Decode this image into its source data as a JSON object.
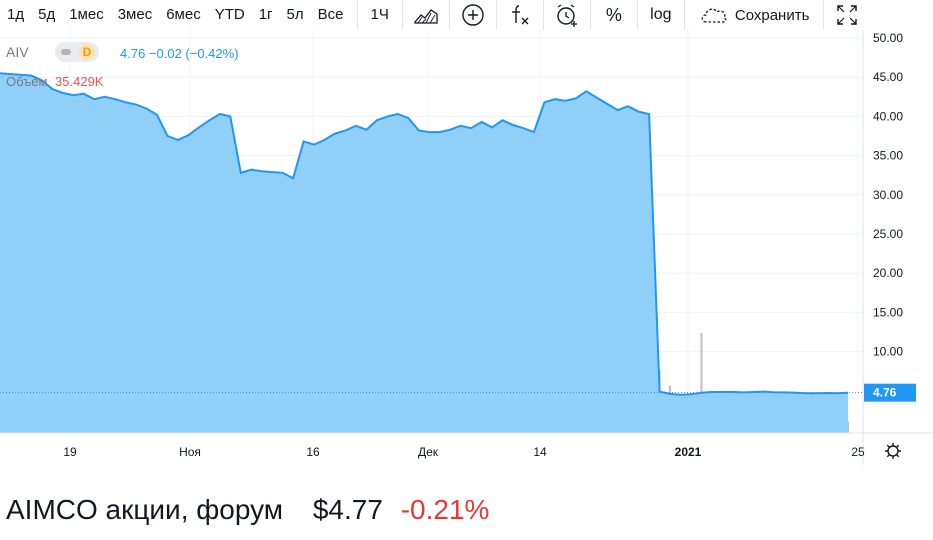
{
  "toolbar": {
    "timeframes": [
      "1д",
      "5д",
      "1мес",
      "3мес",
      "6мес",
      "YTD",
      "1г",
      "5л",
      "Все"
    ],
    "interval": "1Ч",
    "save_label": "Сохранить",
    "percent_label": "%",
    "log_label": "log"
  },
  "legend": {
    "symbol": "AIV",
    "badge": "D",
    "quote": "4.76 −0.02 (−0.42%)",
    "volume_label": "Объём",
    "volume_value": "35.429K"
  },
  "price_axis": {
    "labels": [
      "50.00",
      "45.00",
      "40.00",
      "35.00",
      "30.00",
      "25.00",
      "20.00",
      "15.00",
      "10.00",
      "4.76"
    ],
    "current_price_label": "4.76"
  },
  "time_axis": {
    "labels": [
      "19",
      "Ноя",
      "16",
      "Дек",
      "14",
      "2021",
      "25"
    ]
  },
  "footer": {
    "name": "AIMCO акции, форум",
    "price": "$4.77",
    "change": "-0.21%"
  },
  "colors": {
    "area_fill": "#90d0f8",
    "line": "#2196f3",
    "negative": "#e53935",
    "volume": "#b7a3b0"
  },
  "chart_data": {
    "type": "area",
    "ylim": [
      0,
      50
    ],
    "ticks": [
      "19",
      "Ноя",
      "16",
      "Дек",
      "14",
      "2021",
      "25"
    ],
    "series": [
      {
        "values": [
          45.5,
          45.4,
          45.3,
          45.2,
          44.6,
          43.5,
          43.0,
          42.7,
          42.9,
          42.2,
          42.5,
          42.2,
          41.8,
          41.5,
          41.0,
          40.2,
          37.5,
          37.0,
          37.6,
          38.6,
          39.5,
          40.3,
          40.0,
          32.8,
          33.2,
          33.0,
          32.9,
          32.8,
          32.1,
          36.8,
          36.4,
          37.0,
          37.8,
          38.2,
          38.8,
          38.3,
          39.5,
          40.0,
          40.3,
          39.8,
          38.2,
          38.0,
          38.0,
          38.3,
          38.8,
          38.5,
          39.3,
          38.6,
          39.5,
          38.9,
          38.5,
          38.0,
          41.8,
          42.2,
          42.0,
          42.3,
          43.2,
          42.4,
          41.6,
          40.8,
          41.3,
          40.6,
          40.3,
          4.9,
          4.6,
          4.5,
          4.55,
          4.75,
          4.85,
          4.85,
          4.85,
          4.8,
          4.85,
          4.9,
          4.8,
          4.8,
          4.75,
          4.7,
          4.7,
          4.72,
          4.7,
          4.76
        ]
      }
    ],
    "volume_values": [
      0.8,
      0.6,
      0.7,
      0.5,
      0.9,
      0.4,
      0.6,
      0.5,
      0.7,
      0.6,
      0.5,
      0.4,
      0.6,
      0.7,
      0.5,
      0.6,
      0.8,
      0.7,
      0.5,
      0.6,
      0.5,
      0.6,
      0.4,
      1.5,
      0.9,
      0.7,
      0.6,
      0.5,
      0.8,
      1.2,
      0.7,
      0.6,
      0.5,
      0.6,
      0.4,
      0.5,
      0.6,
      0.5,
      0.7,
      0.6,
      0.4,
      0.5,
      0.6,
      0.5,
      0.4,
      0.6,
      0.5,
      0.4,
      0.5,
      0.6,
      0.5,
      0.4,
      0.9,
      0.7,
      0.6,
      0.5,
      0.6,
      0.5,
      0.4,
      0.5,
      0.6,
      0.5,
      0.6,
      6.0,
      4.5,
      3.2,
      3.8,
      9.5,
      2.8,
      2.5,
      2.0,
      1.8,
      2.2,
      1.9,
      1.6,
      1.5,
      1.7,
      1.4,
      1.3,
      1.5,
      1.2,
      1.1
    ]
  }
}
